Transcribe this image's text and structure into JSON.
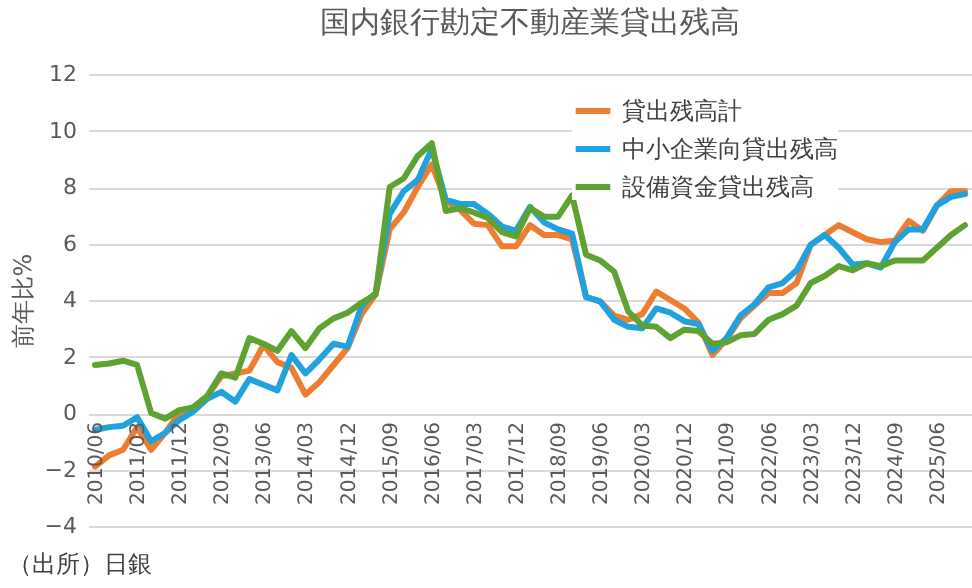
{
  "chart_data": {
    "type": "line",
    "title": "国内銀行勘定不動産業貸出残高",
    "ylabel": "前年比%",
    "categories": [
      "2010/06",
      null,
      null,
      "2011/03",
      null,
      null,
      "2011/12",
      null,
      null,
      "2012/09",
      null,
      null,
      "2013/06",
      null,
      null,
      "2014/03",
      null,
      null,
      "2014/12",
      null,
      null,
      "2015/09",
      null,
      null,
      "2016/06",
      null,
      null,
      "2017/03",
      null,
      null,
      "2017/12",
      null,
      null,
      "2018/09",
      null,
      null,
      "2019/06",
      null,
      null,
      "2020/03",
      null,
      null,
      "2020/12",
      null,
      null,
      "2021/09",
      null,
      null,
      "2022/06",
      null,
      null,
      "2023/03",
      null,
      null,
      "2023/12",
      null,
      null,
      "2024/09",
      null,
      null,
      "2025/06",
      null,
      null
    ],
    "series": [
      {
        "name": "貸出残高計",
        "color": "#ed7d31",
        "values": [
          -1.9,
          -1.5,
          -1.3,
          -0.5,
          -1.3,
          -0.7,
          0,
          0.2,
          0.6,
          1.3,
          1.4,
          1.5,
          2.4,
          1.8,
          1.6,
          0.65,
          1.1,
          1.7,
          2.3,
          3.5,
          4.2,
          6.5,
          7.1,
          8.0,
          8.8,
          7.5,
          7.2,
          6.7,
          6.65,
          5.9,
          5.9,
          6.65,
          6.3,
          6.3,
          6.15,
          4.1,
          3.95,
          3.45,
          3.3,
          3.5,
          4.3,
          4.0,
          3.7,
          3.2,
          2.05,
          2.6,
          3.35,
          3.8,
          4.25,
          4.25,
          4.6,
          5.95,
          6.3,
          6.65,
          6.4,
          6.15,
          6.05,
          6.1,
          6.8,
          6.45,
          7.35,
          7.85,
          7.85
        ]
      },
      {
        "name": "中小企業向貸出残高",
        "color": "#1fa2de",
        "values": [
          -0.6,
          -0.5,
          -0.45,
          -0.15,
          -1.0,
          -0.7,
          -0.25,
          0.05,
          0.5,
          0.75,
          0.4,
          1.2,
          1.0,
          0.8,
          2.05,
          1.4,
          1.9,
          2.45,
          2.35,
          3.8,
          4.25,
          7.05,
          7.85,
          8.25,
          9.35,
          7.55,
          7.4,
          7.4,
          7.05,
          6.6,
          6.45,
          7.3,
          6.75,
          6.5,
          6.35,
          4.1,
          3.95,
          3.3,
          3.05,
          3.0,
          3.7,
          3.55,
          3.25,
          3.15,
          2.2,
          2.65,
          3.45,
          3.85,
          4.45,
          4.6,
          5.05,
          5.95,
          6.3,
          5.85,
          5.25,
          5.3,
          5.15,
          6.05,
          6.5,
          6.5,
          7.35,
          7.65,
          7.75
        ]
      },
      {
        "name": "設備資金貸出残高",
        "color": "#5ea332",
        "values": [
          1.7,
          1.75,
          1.85,
          1.7,
          0,
          -0.2,
          0.1,
          0.2,
          0.6,
          1.4,
          1.25,
          2.65,
          2.45,
          2.2,
          2.9,
          2.3,
          3.0,
          3.35,
          3.55,
          3.9,
          4.2,
          8.0,
          8.3,
          9.1,
          9.55,
          7.15,
          7.25,
          7.1,
          6.9,
          6.4,
          6.25,
          7.25,
          6.95,
          6.95,
          7.7,
          5.6,
          5.4,
          5.0,
          3.6,
          3.1,
          3.05,
          2.65,
          2.95,
          2.9,
          2.45,
          2.5,
          2.75,
          2.8,
          3.3,
          3.5,
          3.8,
          4.6,
          4.85,
          5.2,
          5.05,
          5.3,
          5.2,
          5.4,
          5.4,
          5.4,
          5.85,
          6.3,
          6.65
        ]
      }
    ],
    "ylim": [
      -4,
      12
    ],
    "yticks": [
      -4,
      -2,
      0,
      2,
      4,
      6,
      8,
      10,
      12
    ],
    "grid": "y",
    "legend": "top right",
    "marker": "none",
    "line_style": "solid",
    "annotations": [
      "（出所）日銀"
    ]
  }
}
